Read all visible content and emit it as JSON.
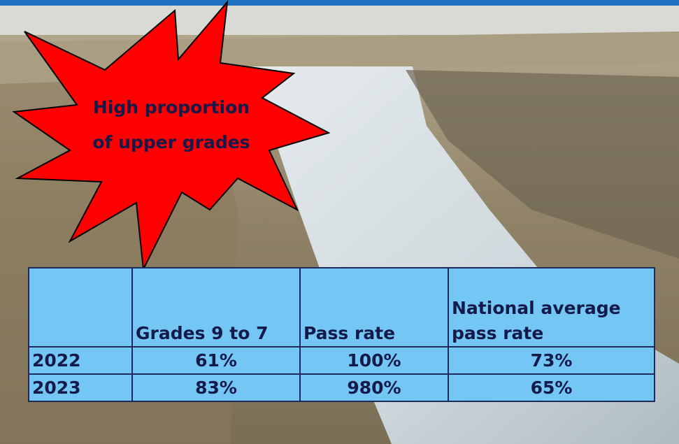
{
  "starburst": {
    "lines": [
      "High proportion",
      "of upper grades"
    ]
  },
  "table": {
    "headers": [
      "Grades 9 to 7",
      "Pass rate",
      "National average pass rate"
    ],
    "rows": [
      [
        "2022",
        "61%",
        "100%",
        "73%"
      ],
      [
        "2023",
        "83%",
        "980%",
        "65%"
      ]
    ]
  }
}
